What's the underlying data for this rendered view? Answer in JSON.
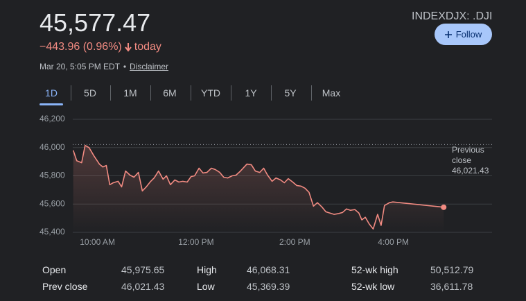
{
  "header": {
    "price": "45,577.47",
    "change": "−443.96 (0.96%)",
    "period": "today",
    "timestamp": "Mar 20, 5:05 PM EDT",
    "disclaimer": "Disclaimer",
    "ticker": "INDEXDJX: .DJI",
    "follow": "Follow"
  },
  "tabs": [
    "1D",
    "5D",
    "1M",
    "6M",
    "YTD",
    "1Y",
    "5Y",
    "Max"
  ],
  "selected_tab": "1D",
  "chart_data": {
    "type": "line",
    "color": "#f28b82",
    "x": [
      9.51,
      9.58,
      9.68,
      9.75,
      9.83,
      9.93,
      10.04,
      10.11,
      10.18,
      10.25,
      10.32,
      10.42,
      10.49,
      10.57,
      10.66,
      10.74,
      10.83,
      10.91,
      10.99,
      11.08,
      11.15,
      11.24,
      11.33,
      11.4,
      11.48,
      11.57,
      11.65,
      11.73,
      11.82,
      11.9,
      11.97,
      12.06,
      12.14,
      12.22,
      12.31,
      12.39,
      12.48,
      12.56,
      12.64,
      12.73,
      12.81,
      12.9,
      13.03,
      13.12,
      13.2,
      13.29,
      13.37,
      13.45,
      13.54,
      13.62,
      13.71,
      13.79,
      13.87,
      13.96,
      14.04,
      14.13,
      14.21,
      14.29,
      14.38,
      14.46,
      14.55,
      14.63,
      14.71,
      14.8,
      14.88,
      14.97,
      15.05,
      15.13,
      15.22,
      15.3,
      15.36,
      15.43,
      15.51,
      15.59,
      15.68,
      15.75,
      15.82,
      15.92,
      15.99,
      17.02
    ],
    "values": [
      45980,
      45907,
      45893,
      46015,
      46000,
      45941,
      45883,
      45863,
      45873,
      45737,
      45751,
      45761,
      45722,
      45834,
      45805,
      45790,
      45824,
      45693,
      45722,
      45761,
      45785,
      45834,
      45776,
      45800,
      45737,
      45771,
      45756,
      45761,
      45756,
      45795,
      45800,
      45854,
      45820,
      45824,
      45854,
      45844,
      45824,
      45790,
      45785,
      45800,
      45805,
      45834,
      45883,
      45878,
      45834,
      45824,
      45854,
      45805,
      45761,
      45785,
      45771,
      45751,
      45780,
      45756,
      45732,
      45727,
      45712,
      45683,
      45585,
      45610,
      45580,
      45546,
      45537,
      45527,
      45532,
      45541,
      45566,
      45556,
      45561,
      45537,
      45488,
      45507,
      45459,
      45424,
      45527,
      45449,
      45590,
      45610,
      45615,
      45577.47
    ],
    "xlim": [
      9.5,
      18
    ],
    "xticks": [
      {
        "value": 10,
        "label": "10:00 AM"
      },
      {
        "value": 12,
        "label": "12:00 PM"
      },
      {
        "value": 14,
        "label": "2:00 PM"
      },
      {
        "value": 16,
        "label": "4:00 PM"
      }
    ],
    "ylim": [
      45400,
      46200
    ],
    "yticks": [
      {
        "value": 45400,
        "label": "45,400"
      },
      {
        "value": 45600,
        "label": "45,600"
      },
      {
        "value": 45800,
        "label": "45,800"
      },
      {
        "value": 46000,
        "label": "46,000"
      },
      {
        "value": 46200,
        "label": "46,200"
      }
    ],
    "grid": true,
    "reference_line": {
      "name": "Previous close",
      "value": 46021.43,
      "value_label": "46,021.43"
    }
  },
  "stats": [
    [
      [
        "Open",
        "45,975.65"
      ],
      [
        "High",
        "46,068.31"
      ],
      [
        "52-wk high",
        "50,512.79"
      ]
    ],
    [
      [
        "Prev close",
        "46,021.43"
      ],
      [
        "Low",
        "45,369.39"
      ],
      [
        "52-wk low",
        "36,611.78"
      ]
    ]
  ]
}
